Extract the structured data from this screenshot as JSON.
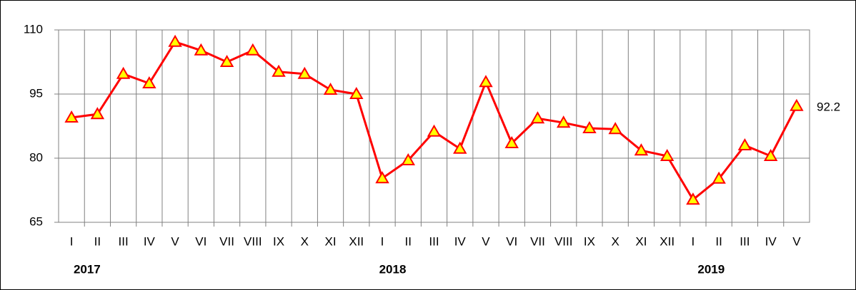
{
  "chart_data": {
    "type": "line",
    "categories": [
      "I",
      "II",
      "III",
      "IV",
      "V",
      "VI",
      "VII",
      "VIII",
      "IX",
      "X",
      "XI",
      "XII",
      "I",
      "II",
      "III",
      "IV",
      "V",
      "VI",
      "VII",
      "VIII",
      "IX",
      "X",
      "XI",
      "XII",
      "I",
      "II",
      "III",
      "IV",
      "V"
    ],
    "years": [
      "2017",
      "2018",
      "2019"
    ],
    "series": [
      {
        "color": "#ff0000",
        "marker_color": "#ffff00",
        "values": [
          89.5,
          90.3,
          99.7,
          97.5,
          107.2,
          105.2,
          102.5,
          105.2,
          100.2,
          99.7,
          96,
          95,
          75.3,
          79.5,
          86.2,
          82.2,
          97.8,
          83.5,
          89.3,
          88.3,
          87,
          86.8,
          81.8,
          80.5,
          70.3,
          75.2,
          83,
          80.5,
          92.2
        ]
      }
    ],
    "ylim": [
      65,
      110
    ],
    "yticks": [
      65,
      80,
      95,
      110
    ],
    "grid": true
  }
}
